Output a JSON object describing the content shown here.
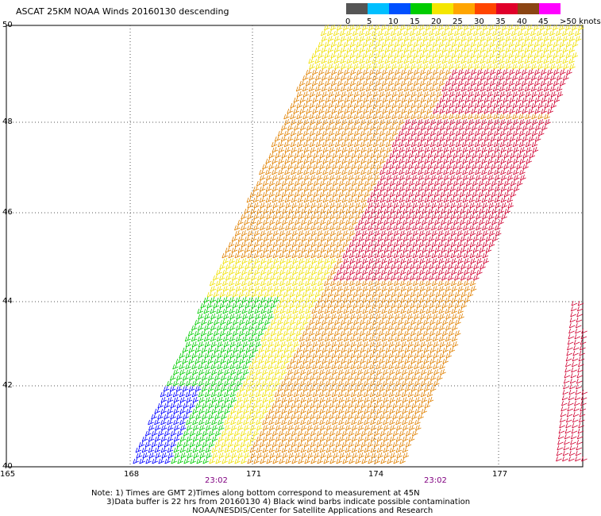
{
  "title": "ASCAT 25KM NOAA Winds 20160130 descending",
  "legend": {
    "items": [
      {
        "label": "0",
        "color": "#555555"
      },
      {
        "label": "5",
        "color": "#00bfff"
      },
      {
        "label": "10",
        "color": "#0050ff"
      },
      {
        "label": "15",
        "color": "#00cc00"
      },
      {
        "label": "20",
        "color": "#f4e600"
      },
      {
        "label": "25",
        "color": "#ffa500"
      },
      {
        "label": "30",
        "color": "#ff4500"
      },
      {
        "label": "35",
        "color": "#e0002a"
      },
      {
        "label": "40",
        "color": "#8b4513"
      },
      {
        "label": "45",
        "color": "#ff00ff"
      },
      {
        "label": ">50 knots",
        "color": "#6a00c0"
      }
    ]
  },
  "map": {
    "lat_labels": [
      "50",
      "48",
      "46",
      "44",
      "42",
      "40"
    ],
    "lon_labels": [
      "165",
      "168",
      "171",
      "174",
      "177"
    ],
    "time_labels": [
      "23:02",
      "23:02"
    ],
    "colors": {
      "blue": "#0000ff",
      "green": "#00cc00",
      "yellow": "#f0e000",
      "orange": "#e08000",
      "red": "#d00030"
    }
  },
  "notes": {
    "line1": "Note: 1) Times are GMT 2)Times along bottom correspond to measurement at 45N",
    "line2": "      3)Data buffer is 22 hrs from 20160130 4) Black wind barbs indicate possible contamination",
    "line3": "                                        NOAA/NESDIS/Center for Satellite Applications and Research"
  }
}
